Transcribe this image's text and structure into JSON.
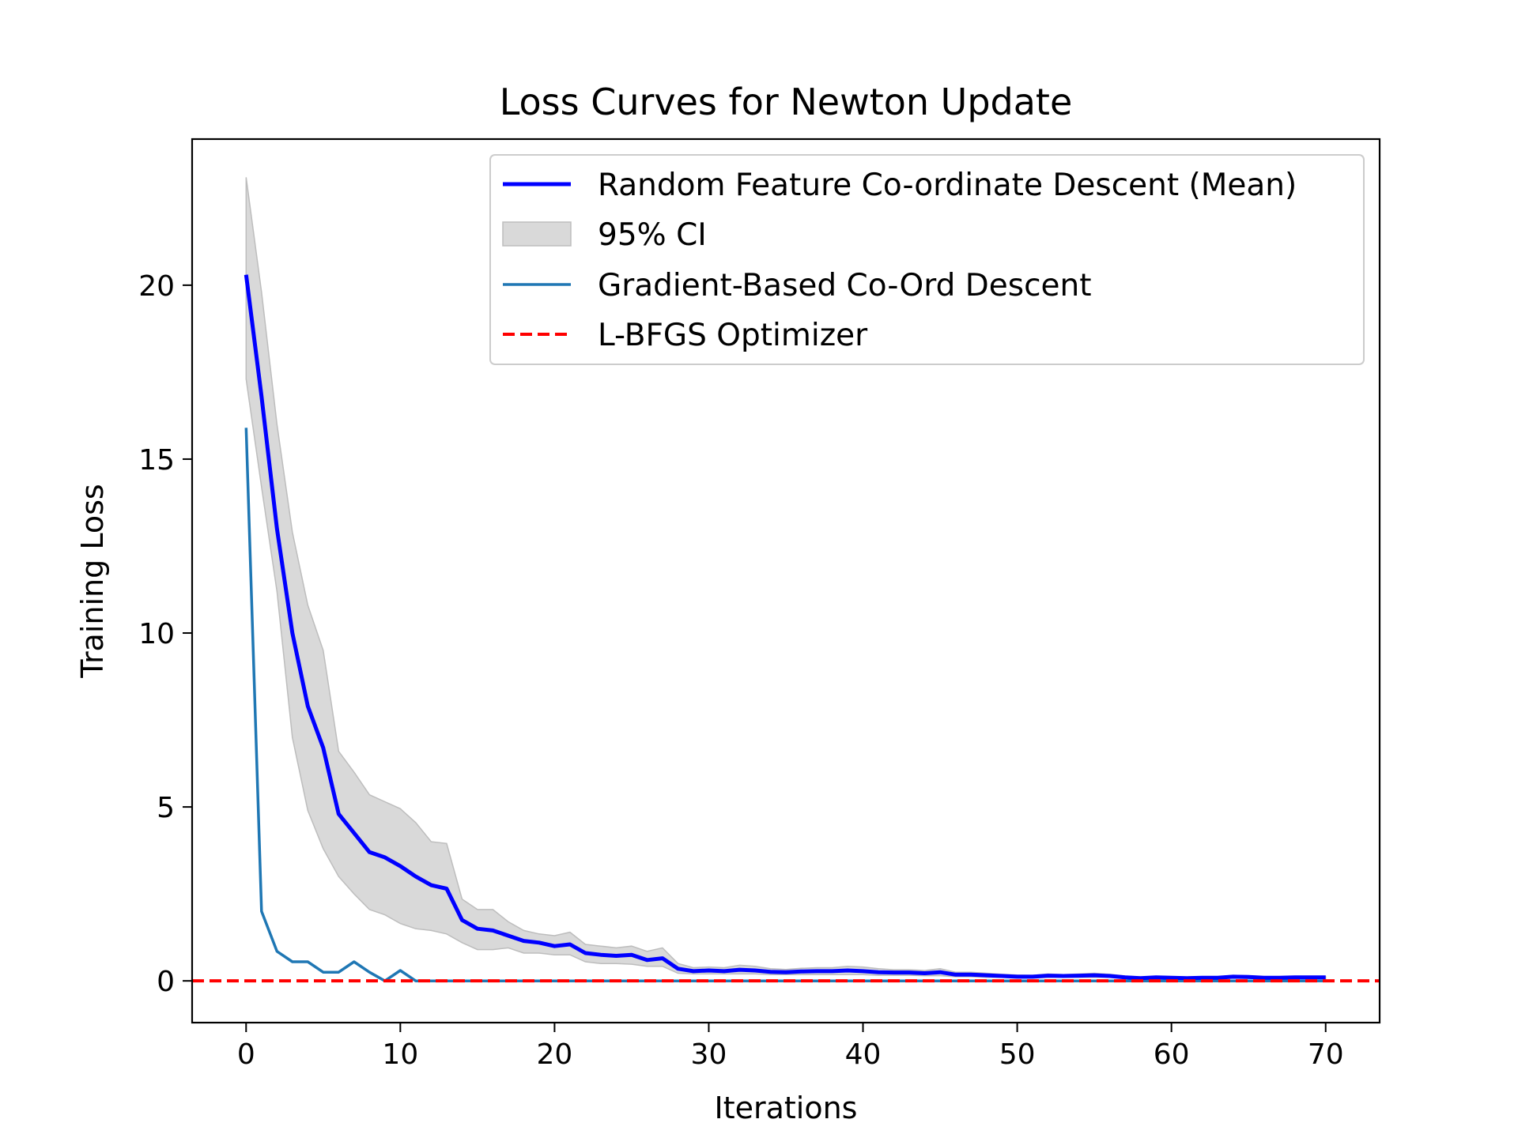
{
  "chart_data": {
    "type": "line",
    "title": "Loss Curves for Newton Update",
    "xlabel": "Iterations",
    "ylabel": "Training Loss",
    "xlim": [
      -3.5,
      73.5
    ],
    "ylim": [
      -1.2,
      24.2
    ],
    "xticks": [
      0,
      10,
      20,
      30,
      40,
      50,
      60,
      70
    ],
    "yticks": [
      0,
      5,
      10,
      15,
      20
    ],
    "grid": false,
    "legend_position": "top-right",
    "series": [
      {
        "name": "Random Feature Co-ordinate Descent (Mean)",
        "kind": "line",
        "color": "#0000ff",
        "x": [
          0,
          1,
          2,
          3,
          4,
          5,
          6,
          7,
          8,
          9,
          10,
          11,
          12,
          13,
          14,
          15,
          16,
          17,
          18,
          19,
          20,
          21,
          22,
          23,
          24,
          25,
          26,
          27,
          28,
          29,
          30,
          31,
          32,
          33,
          34,
          35,
          36,
          37,
          38,
          39,
          40,
          41,
          42,
          43,
          44,
          45,
          46,
          47,
          48,
          49,
          50,
          51,
          52,
          53,
          54,
          55,
          56,
          57,
          58,
          59,
          60,
          61,
          62,
          63,
          64,
          65,
          66,
          67,
          68,
          69,
          70
        ],
        "y": [
          20.3,
          16.8,
          13.0,
          10.0,
          7.9,
          6.7,
          4.8,
          4.25,
          3.7,
          3.55,
          3.3,
          3.0,
          2.75,
          2.65,
          1.75,
          1.5,
          1.45,
          1.3,
          1.15,
          1.1,
          1.0,
          1.05,
          0.8,
          0.75,
          0.72,
          0.75,
          0.6,
          0.65,
          0.35,
          0.28,
          0.3,
          0.28,
          0.32,
          0.3,
          0.26,
          0.25,
          0.27,
          0.28,
          0.28,
          0.3,
          0.28,
          0.25,
          0.24,
          0.24,
          0.22,
          0.25,
          0.18,
          0.18,
          0.16,
          0.14,
          0.12,
          0.12,
          0.15,
          0.14,
          0.15,
          0.16,
          0.14,
          0.1,
          0.08,
          0.1,
          0.09,
          0.08,
          0.09,
          0.09,
          0.12,
          0.11,
          0.09,
          0.09,
          0.1,
          0.1,
          0.1
        ]
      },
      {
        "name": "95% CI",
        "kind": "band",
        "color": "#d9d9d9",
        "x": [
          0,
          1,
          2,
          3,
          4,
          5,
          6,
          7,
          8,
          9,
          10,
          11,
          12,
          13,
          14,
          15,
          16,
          17,
          18,
          19,
          20,
          21,
          22,
          23,
          24,
          25,
          26,
          27,
          28,
          29,
          30,
          31,
          32,
          33,
          34,
          35,
          36,
          37,
          38,
          39,
          40,
          41,
          42,
          43,
          44,
          45,
          46,
          47,
          48,
          49,
          50,
          51,
          52,
          53,
          54,
          55,
          56,
          57,
          58,
          59,
          60,
          61,
          62,
          63,
          64,
          65,
          66,
          67,
          68,
          69,
          70
        ],
        "lower": [
          17.3,
          14.2,
          11.2,
          7.0,
          4.9,
          3.8,
          3.0,
          2.5,
          2.05,
          1.9,
          1.65,
          1.5,
          1.45,
          1.35,
          1.1,
          0.9,
          0.9,
          0.95,
          0.8,
          0.8,
          0.75,
          0.75,
          0.55,
          0.5,
          0.5,
          0.48,
          0.42,
          0.42,
          0.22,
          0.2,
          0.2,
          0.2,
          0.2,
          0.2,
          0.18,
          0.18,
          0.18,
          0.18,
          0.18,
          0.18,
          0.18,
          0.16,
          0.16,
          0.16,
          0.15,
          0.15,
          0.12,
          0.12,
          0.1,
          0.1,
          0.08,
          0.08,
          0.1,
          0.1,
          0.1,
          0.1,
          0.1,
          0.07,
          0.05,
          0.07,
          0.06,
          0.05,
          0.06,
          0.06,
          0.08,
          0.07,
          0.06,
          0.06,
          0.07,
          0.07,
          0.07
        ],
        "upper": [
          23.1,
          19.8,
          16.0,
          12.9,
          10.8,
          9.5,
          6.6,
          6.0,
          5.35,
          5.15,
          4.95,
          4.55,
          4.0,
          3.95,
          2.35,
          2.05,
          2.05,
          1.7,
          1.45,
          1.35,
          1.3,
          1.4,
          1.05,
          1.0,
          0.95,
          1.0,
          0.85,
          0.95,
          0.5,
          0.38,
          0.4,
          0.38,
          0.45,
          0.42,
          0.35,
          0.33,
          0.36,
          0.38,
          0.38,
          0.42,
          0.4,
          0.35,
          0.32,
          0.32,
          0.3,
          0.35,
          0.25,
          0.25,
          0.22,
          0.19,
          0.17,
          0.16,
          0.2,
          0.18,
          0.2,
          0.22,
          0.19,
          0.14,
          0.11,
          0.13,
          0.12,
          0.11,
          0.12,
          0.12,
          0.16,
          0.15,
          0.12,
          0.12,
          0.13,
          0.13,
          0.13
        ]
      },
      {
        "name": "Gradient-Based Co-Ord Descent",
        "kind": "line",
        "color": "#1f77b4",
        "x": [
          0,
          1,
          2,
          3,
          4,
          5,
          6,
          7,
          8,
          9,
          10,
          11,
          12,
          13,
          14,
          15,
          16,
          17,
          18,
          19,
          20,
          21,
          22,
          23,
          24,
          25,
          26,
          27,
          28,
          29,
          30,
          31,
          32,
          33,
          34,
          35,
          36,
          37,
          38,
          39,
          40,
          41,
          42,
          43,
          44,
          45,
          46,
          47,
          48,
          49,
          50,
          51,
          52,
          53,
          54,
          55,
          56,
          57,
          58,
          59,
          60,
          61,
          62,
          63,
          64,
          65,
          66,
          67,
          68,
          69,
          70
        ],
        "y": [
          15.9,
          2.0,
          0.85,
          0.55,
          0.55,
          0.25,
          0.25,
          0.55,
          0.25,
          0.0,
          0.3,
          0.0,
          0.0,
          0.0,
          0.0,
          0.0,
          0.0,
          0.0,
          0.0,
          0.0,
          0.0,
          0.0,
          0.0,
          0.0,
          0.0,
          0.0,
          0.0,
          0.0,
          0.0,
          0.0,
          0.0,
          0.0,
          0.0,
          0.0,
          0.0,
          0.0,
          0.0,
          0.0,
          0.0,
          0.0,
          0.0,
          0.0,
          0.0,
          0.0,
          0.0,
          0.0,
          0.0,
          0.0,
          0.0,
          0.0,
          0.0,
          0.0,
          0.0,
          0.0,
          0.0,
          0.0,
          0.0,
          0.0,
          0.0,
          0.0,
          0.0,
          0.0,
          0.0,
          0.0,
          0.0,
          0.0,
          0.0,
          0.0,
          0.0,
          0.0,
          0.0
        ]
      },
      {
        "name": "L-BFGS Optimizer",
        "kind": "hline",
        "color": "#ff0000",
        "y": 0.0
      }
    ]
  }
}
